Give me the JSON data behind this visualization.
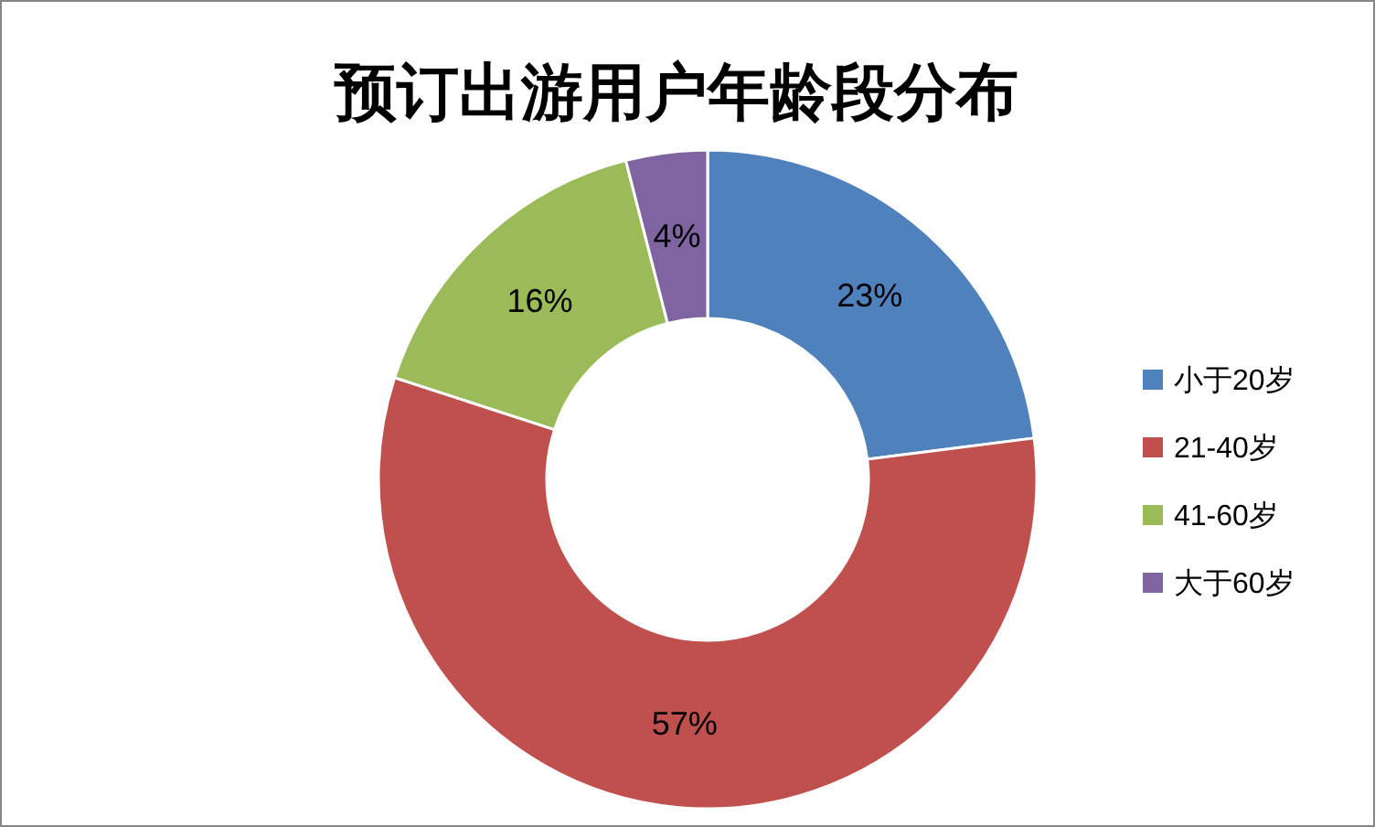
{
  "chart_data": {
    "type": "donut",
    "title": "预订出游用户年龄段分布",
    "categories": [
      "小于20岁",
      "21-40岁",
      "41-60岁",
      "大于60岁"
    ],
    "values": [
      23,
      57,
      16,
      4
    ],
    "value_labels": [
      "23%",
      "57%",
      "16%",
      "4%"
    ],
    "colors": [
      "#4f81bd",
      "#c0504d",
      "#9bbb59",
      "#8064a2"
    ],
    "legend": "right"
  }
}
